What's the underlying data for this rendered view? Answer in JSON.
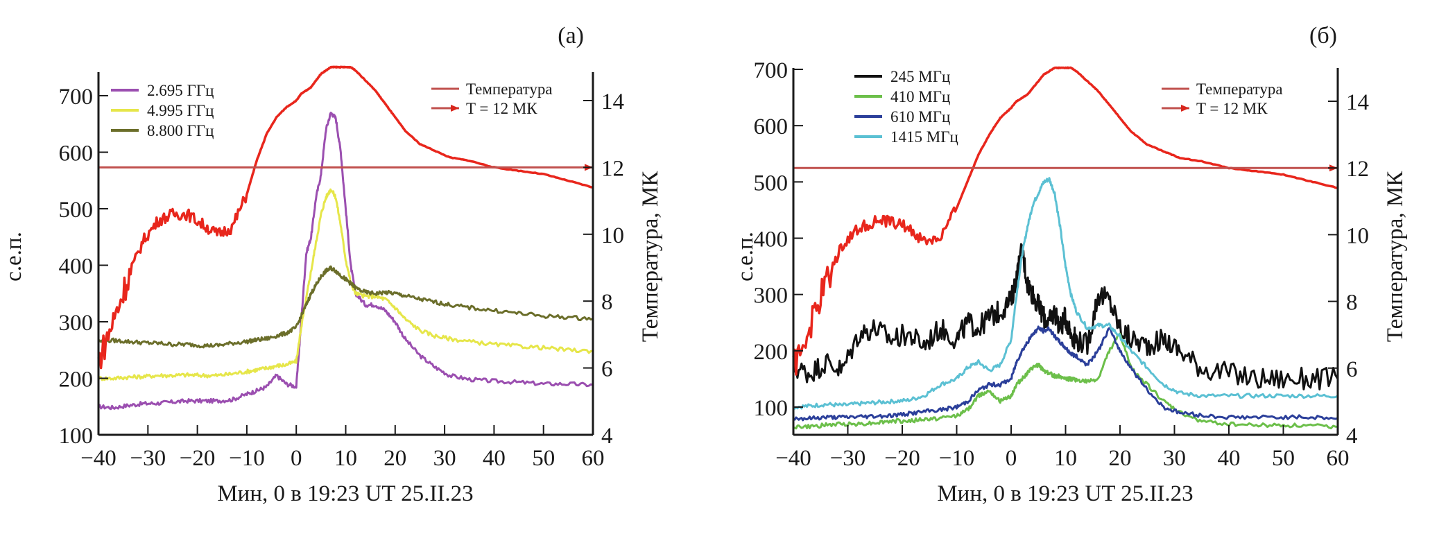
{
  "chart_data": [
    {
      "type": "line",
      "panel_label": "(а)",
      "title": "",
      "xlabel": "Мин, 0 в 19:23 UT 25.II.23",
      "ylabel": "с.е.п.",
      "y2label": "Температура, МК",
      "xlim": [
        -40,
        60
      ],
      "ylim": [
        100,
        750
      ],
      "y2lim": [
        4,
        15
      ],
      "x_ticks": [
        "−40",
        "−30",
        "−20",
        "−10",
        "0",
        "10",
        "20",
        "30",
        "40",
        "50",
        "60"
      ],
      "x_tick_values": [
        -40,
        -30,
        -20,
        -10,
        0,
        10,
        20,
        30,
        40,
        50,
        60
      ],
      "y_ticks": [
        "100",
        "200",
        "300",
        "400",
        "500",
        "600",
        "700"
      ],
      "y_tick_values": [
        100,
        200,
        300,
        400,
        500,
        600,
        700
      ],
      "y2_ticks": [
        "4",
        "6",
        "8",
        "10",
        "12",
        "14"
      ],
      "y2_tick_values": [
        4,
        6,
        8,
        10,
        12,
        14
      ],
      "grid": false,
      "legend_left": {
        "placement": "top-left",
        "entries": [
          {
            "label": "2.695 ГГц",
            "color": "#9b4fb0"
          },
          {
            "label": "4.995 ГГц",
            "color": "#e6e64a"
          },
          {
            "label": "8.800 ГГц",
            "color": "#6b6e2a"
          }
        ]
      },
      "legend_right": {
        "placement": "top-right",
        "entries": [
          {
            "label": "Температура",
            "color": "#c0504d",
            "marker": "line"
          },
          {
            "label": "T = 12 МК",
            "color": "#c0504d",
            "marker": "arrow"
          }
        ]
      },
      "x": [
        -40,
        -37,
        -34,
        -31,
        -28,
        -25,
        -22,
        -19,
        -16,
        -13,
        -10,
        -8,
        -6,
        -4,
        -2,
        0,
        1,
        2,
        3,
        4,
        5,
        6,
        7,
        8,
        9,
        10,
        11,
        12,
        14,
        16,
        18,
        20,
        22,
        25,
        28,
        31,
        35,
        40,
        45,
        50,
        55,
        60
      ],
      "series": [
        {
          "name": "2.695 ГГц",
          "axis": "left",
          "color": "#9b4fb0",
          "values": [
            150,
            148,
            152,
            155,
            156,
            158,
            160,
            160,
            160,
            162,
            172,
            178,
            185,
            205,
            190,
            185,
            300,
            420,
            450,
            520,
            560,
            640,
            670,
            660,
            600,
            500,
            400,
            350,
            330,
            330,
            320,
            300,
            270,
            240,
            220,
            205,
            198,
            195,
            193,
            190,
            190,
            188
          ]
        },
        {
          "name": "4.995 ГГц",
          "axis": "left",
          "color": "#e6e64a",
          "values": [
            200,
            200,
            202,
            203,
            205,
            205,
            206,
            205,
            205,
            208,
            212,
            215,
            218,
            222,
            224,
            230,
            290,
            340,
            390,
            440,
            490,
            520,
            535,
            520,
            470,
            410,
            370,
            350,
            345,
            345,
            340,
            325,
            305,
            285,
            275,
            270,
            265,
            260,
            257,
            254,
            250,
            248
          ]
        },
        {
          "name": "8.800 ГГц",
          "axis": "left",
          "color": "#6b6e2a",
          "values": [
            265,
            267,
            265,
            263,
            262,
            260,
            260,
            258,
            258,
            262,
            265,
            268,
            270,
            275,
            280,
            290,
            310,
            330,
            350,
            365,
            380,
            390,
            395,
            390,
            382,
            375,
            368,
            360,
            352,
            350,
            352,
            350,
            346,
            340,
            335,
            330,
            325,
            320,
            315,
            310,
            308,
            305
          ]
        },
        {
          "name": "Температура",
          "axis": "right",
          "color": "#e8261c",
          "values": [
            6.2,
            7.4,
            8.7,
            9.8,
            10.4,
            10.6,
            10.6,
            10.3,
            10.0,
            10.2,
            11.2,
            12.2,
            13.0,
            13.5,
            13.8,
            14.0,
            14.2,
            14.3,
            14.4,
            14.6,
            14.8,
            14.9,
            15.0,
            15.0,
            15.0,
            15.0,
            15.0,
            14.9,
            14.6,
            14.3,
            13.9,
            13.5,
            13.1,
            12.7,
            12.5,
            12.3,
            12.2,
            12.0,
            11.9,
            11.8,
            11.6,
            11.4
          ]
        }
      ],
      "threshold": {
        "name": "T = 12 МК",
        "axis": "right",
        "value": 12,
        "color": "#c0504d"
      }
    },
    {
      "type": "line",
      "panel_label": "(б)",
      "title": "",
      "xlabel": "Мин, 0 в 19:23 UT 25.II.23",
      "ylabel": "с.е.п.",
      "y2label": "Температура, МК",
      "xlim": [
        -40,
        60
      ],
      "ylim": [
        50,
        700
      ],
      "y2lim": [
        4,
        15
      ],
      "x_ticks": [
        "−40",
        "−30",
        "−20",
        "−10",
        "0",
        "10",
        "20",
        "30",
        "40",
        "50",
        "60"
      ],
      "x_tick_values": [
        -40,
        -30,
        -20,
        -10,
        0,
        10,
        20,
        30,
        40,
        50,
        60
      ],
      "y_ticks": [
        "100",
        "200",
        "300",
        "400",
        "500",
        "600",
        "700"
      ],
      "y_tick_values": [
        100,
        200,
        300,
        400,
        500,
        600,
        700
      ],
      "y2_ticks": [
        "4",
        "6",
        "8",
        "10",
        "12",
        "14"
      ],
      "y2_tick_values": [
        4,
        6,
        8,
        10,
        12,
        14
      ],
      "grid": false,
      "legend_left": {
        "placement": "top-left",
        "entries": [
          {
            "label": "245 МГц",
            "color": "#111111"
          },
          {
            "label": "410 МГц",
            "color": "#6cbf4a"
          },
          {
            "label": "610 МГц",
            "color": "#2b3f9a"
          },
          {
            "label": "1415 МГц",
            "color": "#5bc0d3"
          }
        ]
      },
      "legend_right": {
        "placement": "top-right",
        "entries": [
          {
            "label": "Температура",
            "color": "#c0504d",
            "marker": "line"
          },
          {
            "label": "T = 12 МК",
            "color": "#c0504d",
            "marker": "arrow"
          }
        ]
      },
      "x": [
        -40,
        -37,
        -34,
        -31,
        -28,
        -25,
        -22,
        -19,
        -16,
        -13,
        -10,
        -8,
        -6,
        -4,
        -2,
        0,
        1,
        2,
        3,
        4,
        5,
        6,
        7,
        8,
        9,
        10,
        11,
        12,
        14,
        16,
        18,
        20,
        22,
        25,
        28,
        31,
        35,
        40,
        45,
        50,
        55,
        60
      ],
      "series": [
        {
          "name": "245 МГц",
          "axis": "left",
          "color": "#111111",
          "values": [
            170,
            160,
            180,
            165,
            230,
            240,
            220,
            230,
            210,
            240,
            220,
            250,
            240,
            260,
            270,
            290,
            330,
            380,
            320,
            300,
            280,
            260,
            250,
            270,
            240,
            260,
            230,
            220,
            210,
            300,
            290,
            240,
            220,
            210,
            220,
            200,
            170,
            160,
            150,
            150,
            150,
            150
          ]
        },
        {
          "name": "410 МГц",
          "axis": "left",
          "color": "#6cbf4a",
          "values": [
            65,
            65,
            68,
            70,
            70,
            72,
            75,
            75,
            78,
            80,
            85,
            95,
            120,
            130,
            110,
            120,
            140,
            150,
            160,
            170,
            175,
            165,
            160,
            155,
            155,
            150,
            150,
            148,
            145,
            150,
            200,
            230,
            170,
            140,
            110,
            90,
            75,
            70,
            68,
            68,
            67,
            65
          ]
        },
        {
          "name": "610 МГц",
          "axis": "left",
          "color": "#2b3f9a",
          "values": [
            80,
            80,
            82,
            82,
            83,
            84,
            85,
            88,
            92,
            95,
            100,
            110,
            130,
            140,
            140,
            150,
            180,
            200,
            215,
            230,
            240,
            235,
            240,
            225,
            215,
            205,
            195,
            190,
            175,
            200,
            240,
            200,
            170,
            130,
            100,
            90,
            85,
            82,
            82,
            82,
            82,
            80
          ]
        },
        {
          "name": "1415 МГц",
          "axis": "left",
          "color": "#5bc0d3",
          "values": [
            100,
            102,
            105,
            103,
            106,
            108,
            110,
            112,
            120,
            140,
            150,
            170,
            180,
            165,
            175,
            220,
            300,
            370,
            420,
            460,
            480,
            500,
            505,
            480,
            420,
            350,
            300,
            270,
            240,
            245,
            245,
            225,
            200,
            170,
            140,
            125,
            120,
            120,
            120,
            120,
            120,
            120
          ]
        },
        {
          "name": "Температура",
          "axis": "right",
          "color": "#e8261c",
          "values": [
            6.0,
            7.2,
            8.6,
            9.7,
            10.2,
            10.4,
            10.4,
            10.2,
            9.8,
            9.9,
            10.8,
            11.6,
            12.4,
            13.0,
            13.5,
            13.8,
            14.0,
            14.1,
            14.2,
            14.4,
            14.6,
            14.8,
            14.9,
            15.0,
            15.0,
            15.0,
            15.0,
            14.9,
            14.6,
            14.3,
            13.9,
            13.5,
            13.1,
            12.7,
            12.5,
            12.3,
            12.2,
            12.0,
            11.9,
            11.8,
            11.6,
            11.4
          ]
        }
      ],
      "threshold": {
        "name": "T = 12 МК",
        "axis": "right",
        "value": 12,
        "color": "#c0504d"
      }
    }
  ]
}
